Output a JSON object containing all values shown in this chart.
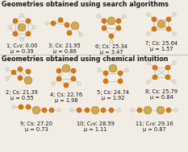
{
  "title1": "Geometries obtained using search algorithms",
  "title2": "Geometries obtained using chemical intuition",
  "bg_color": "#f2ede4",
  "small_node_color": "#e07800",
  "small_node_edge": "#b05500",
  "large_node_color": "#d4a84b",
  "large_node_edge": "#9a7820",
  "h_node_color": "#e8e2d5",
  "h_node_edge": "#b0a888",
  "edge_color": "#b8c4cc",
  "label_fontsize": 4.8,
  "title_fontsize": 5.8,
  "figure_width": 2.33,
  "figure_height": 1.89,
  "dpi": 100,
  "labels": [
    "1; C₂v: 0.00\nμ = 0.39",
    "3; Cs: 21.95\nμ = 0.86",
    "6; Cs: 25.34\nμ = 3.47",
    "7; Cs: 25.64\nμ = 1.57",
    "2; Cs: 21.39\nμ = 0.55",
    "4; Cs: 22.76\nμ = 1.98",
    "5; Cs: 24.74\nμ = 1.92",
    "8; Cs: 25.79\nμ = 0.84",
    "9; Cs: 27.20\nμ = 0.73",
    "10; C₂v: 28.59\nμ = 1.11",
    "11; C₂v: 29.16\nμ = 0.87"
  ]
}
